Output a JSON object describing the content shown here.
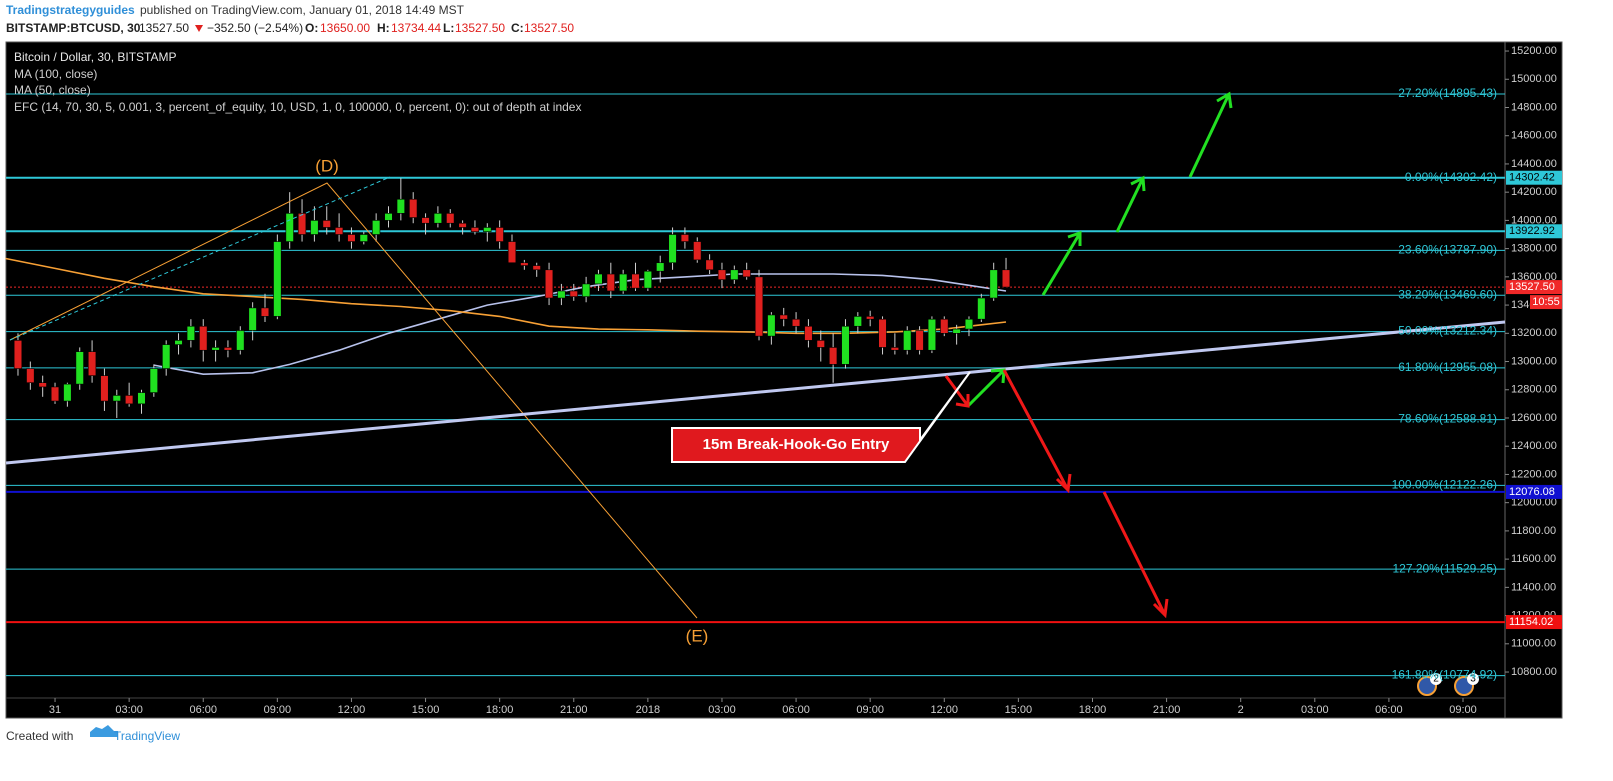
{
  "header": {
    "author": "Tradingstrategyguides",
    "published": "published on TradingView.com, January 01, 2018 14:49 MST",
    "symbol": "BITSTAMP:BTCUSD, 30",
    "last": "13527.50",
    "change": "−352.50 (−2.54%)",
    "o_label": "O:",
    "o": "13650.00",
    "h_label": "H:",
    "h": "13734.44",
    "l_label": "L:",
    "l": "13527.50",
    "c_label": "C:",
    "c": "13527.50"
  },
  "chart_data": {
    "type": "candlestick",
    "title": "Bitcoin / Dollar, 30, BITSTAMP",
    "indicator_note": "EFC (14, 70, 30, 5, 0.001, 3, percent_of_equity, 10, USD, 1, 0, 100000, 0, percent, 0): out of depth at index",
    "up_color": "#20e020",
    "down_color": "#e0201e",
    "wick_color": "#d0d0d0",
    "open": [
      13150,
      12950,
      12850,
      12820,
      12720,
      12840,
      13070,
      12900,
      12720,
      12760,
      12700,
      12780,
      12950,
      13120,
      13150,
      13250,
      13080,
      13100,
      13080,
      13220,
      13380,
      13320,
      13850,
      14050,
      13900,
      14000,
      13950,
      13900,
      13850,
      13900,
      14000,
      14050,
      14150,
      14020,
      13980,
      14050,
      13980,
      13950,
      13920,
      13950,
      13850,
      13700,
      13680,
      13650,
      13450,
      13500,
      13460,
      13550,
      13620,
      13500,
      13620,
      13520,
      13640,
      13700,
      13900,
      13850,
      13720,
      13650,
      13580,
      13650,
      13600,
      13180,
      13330,
      13300,
      13250,
      13150,
      13100,
      12980,
      13250,
      13320,
      13300,
      13100,
      13080,
      13220,
      13080,
      13300,
      13200,
      13230,
      13300,
      13450,
      13650
    ],
    "high": [
      13200,
      13000,
      12900,
      12850,
      12850,
      13100,
      13150,
      12950,
      12800,
      12850,
      12800,
      12980,
      13150,
      13200,
      13300,
      13300,
      13150,
      13150,
      13250,
      13420,
      13480,
      13900,
      14200,
      14150,
      14100,
      14100,
      14050,
      13950,
      13920,
      14050,
      14100,
      14300,
      14200,
      14050,
      14100,
      14080,
      14000,
      14000,
      13980,
      14000,
      13900,
      13720,
      13700,
      13700,
      13550,
      13550,
      13600,
      13650,
      13700,
      13650,
      13700,
      13650,
      13750,
      13950,
      13950,
      13880,
      13760,
      13700,
      13680,
      13700,
      13650,
      13350,
      13380,
      13350,
      13300,
      13220,
      13200,
      13300,
      13350,
      13360,
      13320,
      13200,
      13250,
      13250,
      13320,
      13320,
      13260,
      13320,
      13480,
      13700,
      13734.44
    ],
    "low": [
      12900,
      12800,
      12750,
      12700,
      12680,
      12800,
      12850,
      12650,
      12600,
      12680,
      12630,
      12750,
      12900,
      13050,
      13100,
      13000,
      13000,
      13030,
      13050,
      13150,
      13280,
      13300,
      13800,
      13850,
      13850,
      13900,
      13850,
      13800,
      13830,
      13850,
      13950,
      14000,
      13980,
      13900,
      13950,
      13950,
      13900,
      13900,
      13850,
      13800,
      13700,
      13650,
      13600,
      13400,
      13400,
      13430,
      13420,
      13500,
      13450,
      13480,
      13500,
      13500,
      13560,
      13650,
      13800,
      13700,
      13620,
      13520,
      13550,
      13580,
      13150,
      13120,
      13250,
      13200,
      13100,
      13000,
      12850,
      12950,
      13200,
      13250,
      13050,
      13050,
      13050,
      13050,
      13060,
      13180,
      13120,
      13180,
      13280,
      13430,
      13527.5
    ],
    "close": [
      12950,
      12850,
      12820,
      12720,
      12840,
      13070,
      12900,
      12720,
      12760,
      12700,
      12780,
      12950,
      13120,
      13150,
      13250,
      13080,
      13100,
      13080,
      13220,
      13380,
      13320,
      13850,
      14050,
      13900,
      14000,
      13950,
      13900,
      13850,
      13900,
      14000,
      14050,
      14150,
      14020,
      13980,
      14050,
      13980,
      13950,
      13920,
      13950,
      13850,
      13700,
      13680,
      13650,
      13450,
      13500,
      13460,
      13550,
      13620,
      13500,
      13620,
      13520,
      13640,
      13700,
      13900,
      13850,
      13720,
      13650,
      13580,
      13650,
      13600,
      13180,
      13330,
      13300,
      13250,
      13150,
      13100,
      12980,
      13250,
      13320,
      13300,
      13100,
      13080,
      13220,
      13080,
      13300,
      13200,
      13230,
      13300,
      13450,
      13650,
      13527.5
    ],
    "series": [
      {
        "name": "MA (100, close)",
        "color": "#b8c2ec",
        "x": [
          11,
          15,
          19,
          22,
          26,
          30,
          34,
          38,
          42,
          46,
          50,
          54,
          58,
          62,
          66,
          70,
          74,
          77,
          80
        ],
        "values": [
          12975,
          12910,
          12920,
          12980,
          13080,
          13200,
          13300,
          13400,
          13460,
          13530,
          13580,
          13600,
          13620,
          13620,
          13620,
          13610,
          13580,
          13540,
          13500
        ]
      },
      {
        "name": "MA (50, close)",
        "color": "#f7a035",
        "x": [
          -1,
          3,
          7,
          11,
          15,
          19,
          23,
          27,
          31,
          35,
          39,
          43,
          47,
          51,
          55,
          59,
          63,
          67,
          71,
          75,
          78,
          80
        ],
        "values": [
          13730,
          13660,
          13590,
          13530,
          13480,
          13460,
          13440,
          13410,
          13390,
          13360,
          13320,
          13250,
          13230,
          13225,
          13215,
          13210,
          13200,
          13200,
          13210,
          13230,
          13260,
          13280
        ]
      }
    ],
    "xlim": [
      -0.97,
      120.4
    ],
    "xticks": [
      {
        "value": 3,
        "label": "31"
      },
      {
        "value": 9,
        "label": "03:00"
      },
      {
        "value": 15,
        "label": "06:00"
      },
      {
        "value": 21,
        "label": "09:00"
      },
      {
        "value": 27,
        "label": "12:00"
      },
      {
        "value": 33,
        "label": "15:00"
      },
      {
        "value": 39,
        "label": "18:00"
      },
      {
        "value": 45,
        "label": "21:00"
      },
      {
        "value": 51,
        "label": "2018"
      },
      {
        "value": 57,
        "label": "03:00"
      },
      {
        "value": 63,
        "label": "06:00"
      },
      {
        "value": 69,
        "label": "09:00"
      },
      {
        "value": 75,
        "label": "12:00"
      },
      {
        "value": 81,
        "label": "15:00"
      },
      {
        "value": 87,
        "label": "18:00"
      },
      {
        "value": 93,
        "label": "21:00"
      },
      {
        "value": 99,
        "label": "2"
      },
      {
        "value": 105,
        "label": "03:00"
      },
      {
        "value": 111,
        "label": "06:00"
      },
      {
        "value": 117,
        "label": "09:00"
      }
    ],
    "ylim": [
      10616,
      15264
    ],
    "yticks": [
      {
        "value": 10800,
        "label": "10800.00"
      },
      {
        "value": 11000,
        "label": "11000.00"
      },
      {
        "value": 11200,
        "label": "11200.00"
      },
      {
        "value": 11400,
        "label": "11400.00"
      },
      {
        "value": 11600,
        "label": "11600.00"
      },
      {
        "value": 11800,
        "label": "11800.00"
      },
      {
        "value": 12000,
        "label": "12000.00"
      },
      {
        "value": 12200,
        "label": "12200.00"
      },
      {
        "value": 12400,
        "label": "12400.00"
      },
      {
        "value": 12600,
        "label": "12600.00"
      },
      {
        "value": 12800,
        "label": "12800.00"
      },
      {
        "value": 13000,
        "label": "13000.00"
      },
      {
        "value": 13200,
        "label": "13200.00"
      },
      {
        "value": 13400,
        "label": "13400.00"
      },
      {
        "value": 13600,
        "label": "13600.00"
      },
      {
        "value": 13800,
        "label": "13800.00"
      },
      {
        "value": 14000,
        "label": "14000.00"
      },
      {
        "value": 14200,
        "label": "14200.00"
      },
      {
        "value": 14400,
        "label": "14400.00"
      },
      {
        "value": 14600,
        "label": "14600.00"
      },
      {
        "value": 14800,
        "label": "14800.00"
      },
      {
        "value": 15000,
        "label": "15000.00"
      },
      {
        "value": 15200,
        "label": "15200.00"
      }
    ],
    "grid": false,
    "fib_color": "#2ec8d8",
    "fib_levels": [
      {
        "value": 14895.43,
        "label": "-27.20%(14895.43)"
      },
      {
        "value": 14302.42,
        "label": "0.00%(14302.42)"
      },
      {
        "value": 13787.9,
        "label": "23.60%(13787.90)"
      },
      {
        "value": 13469.6,
        "label": "38.20%(13469.60)"
      },
      {
        "value": 13212.34,
        "label": "50.00%(13212.34)"
      },
      {
        "value": 12955.08,
        "label": "61.80%(12955.08)"
      },
      {
        "value": 12588.81,
        "label": "78.60%(12588.81)"
      },
      {
        "value": 12122.26,
        "label": "100.00%(12122.26)"
      },
      {
        "value": 11529.25,
        "label": "127.20%(11529.25)"
      },
      {
        "value": 10774.92,
        "label": "161.80%(10774.92)"
      }
    ],
    "price_lines": [
      {
        "value": 14302.42,
        "label": "14302.42",
        "color": "#2ec8d8",
        "text_color": "#000000"
      },
      {
        "value": 13922.92,
        "label": "13922.92",
        "color": "#2ec8d8",
        "text_color": "#000000"
      },
      {
        "value": 13527.5,
        "label": "13527.50",
        "color": "#f02828",
        "text_color": "#ffffff",
        "dashed": true
      },
      {
        "value": 12076.08,
        "label": "12076.08",
        "color": "#1010d0",
        "text_color": "#ffffff"
      },
      {
        "value": 11154.02,
        "label": "11154.02",
        "color": "#f01010",
        "text_color": "#ffffff"
      }
    ],
    "countdown": "10:55",
    "annotations": {
      "d": "(D)",
      "e": "(E)",
      "entry": "15m Break-Hook-Go Entry"
    },
    "event_badges": [
      "2",
      "3"
    ]
  },
  "footer": {
    "created": "Created with",
    "brand": "TradingView"
  }
}
